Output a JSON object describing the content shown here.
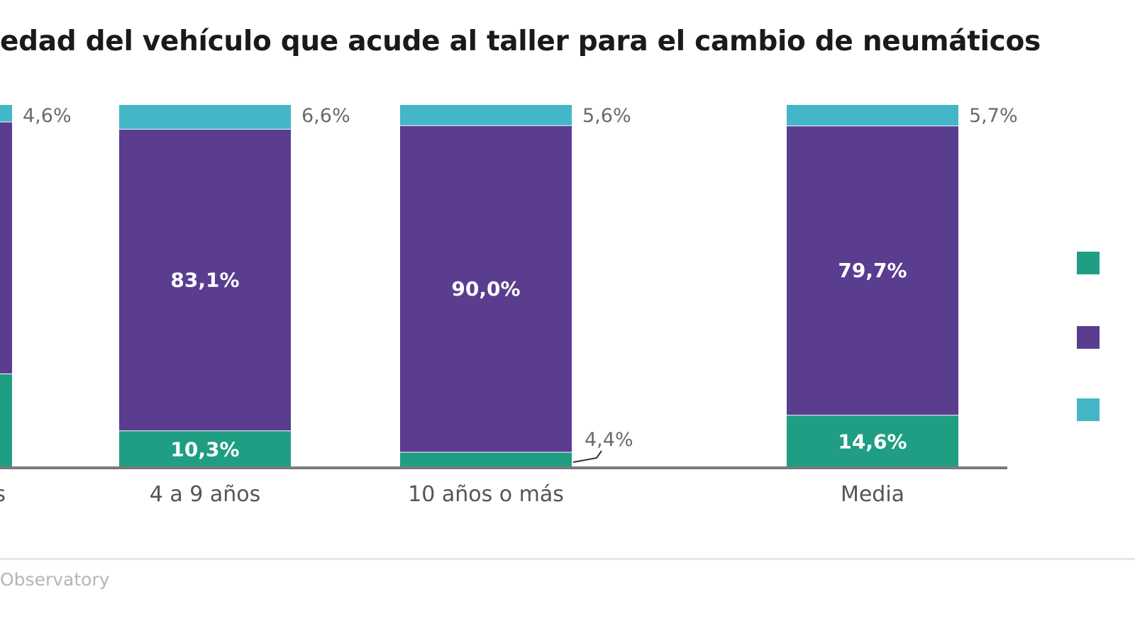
{
  "chart_data": {
    "type": "bar",
    "stacked": true,
    "title": "edad del vehículo que acude al taller para el cambio de neumáticos",
    "categories": [
      "s",
      "4 a 9 años",
      "10 años o más",
      "Media"
    ],
    "series": [
      {
        "values": [
          26.0,
          10.3,
          4.4,
          14.6
        ]
      },
      {
        "values": [
          69.4,
          83.1,
          90.0,
          79.7
        ]
      },
      {
        "values": [
          4.6,
          6.6,
          5.6,
          5.7
        ]
      }
    ],
    "value_labels": [
      [
        "",
        "10,3%",
        "4,4%",
        "14,6%"
      ],
      [
        "",
        "83,1%",
        "90,0%",
        "79,7%"
      ],
      [
        "4,6%",
        "6,6%",
        "5,6%",
        "5,7%"
      ]
    ],
    "ylim": [
      0,
      100
    ],
    "grid": false,
    "legend_position": "right",
    "colors": [
      "#1f9e83",
      "#5a3d8f",
      "#43b6c8"
    ],
    "baseline_color": "#7a7a7a",
    "label_color_inside": "#ffffff",
    "label_color_outside": "#6b6b6b",
    "tick_label_color": "#555555"
  },
  "footer": {
    "source_text": "Observatory"
  }
}
